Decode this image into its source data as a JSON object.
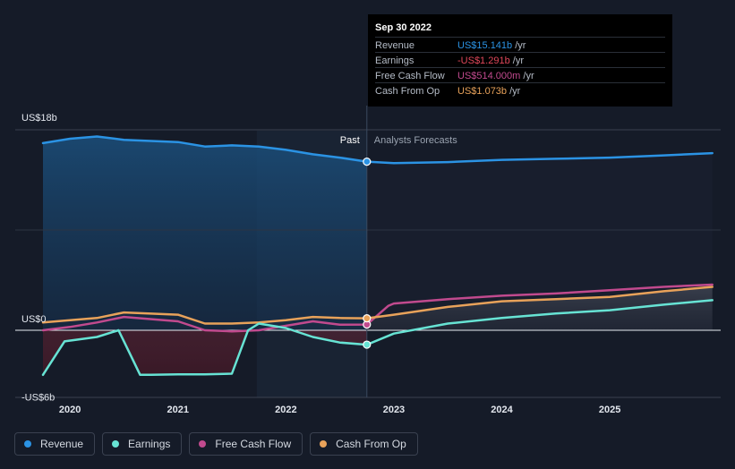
{
  "chart_data": {
    "type": "line",
    "title": "",
    "xlabel": "",
    "ylabel": "",
    "x_ticks": [
      "2020",
      "2021",
      "2022",
      "2023",
      "2024",
      "2025"
    ],
    "y_ticks": [
      {
        "value": 18,
        "label": "US$18b"
      },
      {
        "value": 0,
        "label": "US$0"
      },
      {
        "value": -6,
        "label": "-US$6b"
      }
    ],
    "ylim": [
      -6,
      18
    ],
    "xlim": [
      2019.75,
      2025.95
    ],
    "divider_x": 2022.75,
    "past_label": "Past",
    "forecast_label": "Analysts Forecasts",
    "series": [
      {
        "name": "Revenue",
        "color": "#2b93e4",
        "x": [
          2019.75,
          2020.0,
          2020.25,
          2020.5,
          2021.0,
          2021.25,
          2021.5,
          2021.75,
          2022.0,
          2022.25,
          2022.5,
          2022.75,
          2023.0,
          2023.5,
          2024.0,
          2024.5,
          2025.0,
          2025.5,
          2025.95
        ],
        "y": [
          16.8,
          17.2,
          17.4,
          17.1,
          16.9,
          16.5,
          16.6,
          16.5,
          16.2,
          15.8,
          15.5,
          15.14,
          15.0,
          15.1,
          15.3,
          15.4,
          15.5,
          15.7,
          15.9
        ]
      },
      {
        "name": "Earnings",
        "color": "#67e3d4",
        "x": [
          2019.75,
          2019.95,
          2020.25,
          2020.45,
          2020.55,
          2020.65,
          2020.75,
          2021.0,
          2021.25,
          2021.5,
          2021.65,
          2021.75,
          2022.0,
          2022.25,
          2022.5,
          2022.75,
          2023.0,
          2023.5,
          2024.0,
          2024.5,
          2025.0,
          2025.5,
          2025.95
        ],
        "y": [
          -4.0,
          -1.0,
          -0.6,
          0.0,
          -2.0,
          -4.0,
          -4.0,
          -3.95,
          -3.95,
          -3.9,
          0.0,
          0.6,
          0.2,
          -0.6,
          -1.1,
          -1.29,
          -0.3,
          0.6,
          1.1,
          1.5,
          1.8,
          2.3,
          2.7
        ]
      },
      {
        "name": "Free Cash Flow",
        "color": "#c14a8e",
        "x": [
          2019.75,
          2020.0,
          2020.25,
          2020.5,
          2021.0,
          2021.25,
          2021.5,
          2021.75,
          2022.0,
          2022.25,
          2022.5,
          2022.75,
          2022.95,
          2023.0,
          2023.5,
          2024.0,
          2024.5,
          2025.0,
          2025.5,
          2025.95
        ],
        "y": [
          0.0,
          0.3,
          0.7,
          1.2,
          0.8,
          0.0,
          -0.1,
          0.0,
          0.4,
          0.8,
          0.5,
          0.514,
          2.2,
          2.4,
          2.8,
          3.1,
          3.3,
          3.6,
          3.9,
          4.1
        ]
      },
      {
        "name": "Cash From Op",
        "color": "#e8a25a",
        "x": [
          2019.75,
          2020.0,
          2020.25,
          2020.5,
          2021.0,
          2021.25,
          2021.5,
          2021.75,
          2022.0,
          2022.25,
          2022.5,
          2022.75,
          2023.0,
          2023.5,
          2024.0,
          2024.5,
          2025.0,
          2025.5,
          2025.95
        ],
        "y": [
          0.7,
          0.9,
          1.1,
          1.6,
          1.4,
          0.6,
          0.6,
          0.7,
          0.9,
          1.2,
          1.1,
          1.073,
          1.4,
          2.1,
          2.6,
          2.8,
          3.0,
          3.5,
          3.9
        ]
      }
    ]
  },
  "tooltip": {
    "date": "Sep 30 2022",
    "rows": [
      {
        "label": "Revenue",
        "value": "US$15.141b",
        "unit": " /yr",
        "color": "#2b93e4"
      },
      {
        "label": "Earnings",
        "value": "-US$1.291b",
        "unit": " /yr",
        "color": "#e0475a"
      },
      {
        "label": "Free Cash Flow",
        "value": "US$514.000m",
        "unit": " /yr",
        "color": "#c14a8e"
      },
      {
        "label": "Cash From Op",
        "value": "US$1.073b",
        "unit": " /yr",
        "color": "#e8a25a"
      }
    ]
  },
  "legend": [
    {
      "label": "Revenue",
      "color": "#2b93e4"
    },
    {
      "label": "Earnings",
      "color": "#67e3d4"
    },
    {
      "label": "Free Cash Flow",
      "color": "#c14a8e"
    },
    {
      "label": "Cash From Op",
      "color": "#e8a25a"
    }
  ]
}
